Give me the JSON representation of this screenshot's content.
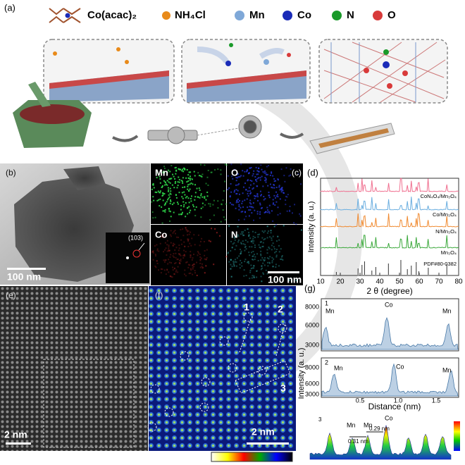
{
  "panel_a": {
    "label": "(a)",
    "legend": [
      "Co(acac)₂",
      "NH₄Cl",
      "Mn",
      "Co",
      "N",
      "O"
    ]
  },
  "panel_b": {
    "label": "(b)",
    "scale": "100 nm",
    "fft_index": "(103)"
  },
  "panel_c": {
    "label": "(c)",
    "maps": [
      "Mn",
      "O",
      "Co",
      "N"
    ],
    "scale": "100 nm"
  },
  "panel_d": {
    "label": "(d)",
    "ylabel": "Intensity (a. u.)",
    "xlabel": "2 θ (degree)",
    "xticks": [
      "10",
      "20",
      "30",
      "40",
      "50",
      "60",
      "70",
      "80"
    ],
    "traces": [
      "CoN₄O₄/Mn₃O₄",
      "Co/Mn₃O₄",
      "N/Mn₃O₄",
      "Mn₃O₄",
      "PDF#80-0382"
    ]
  },
  "panel_e": {
    "label": "(e)",
    "scale": "2 nm"
  },
  "panel_f": {
    "label": "(f)",
    "scale": "2 nm",
    "markers": [
      "1",
      "2",
      "3"
    ]
  },
  "panel_g": {
    "label": "(g)",
    "ylabel": "Intensity (a. u.)",
    "xlabel": "Distance (nm)",
    "yticks": [
      "8000",
      "6000",
      "3000"
    ],
    "xticks": [
      "0.5",
      "1.0",
      "1.5"
    ],
    "profile_1": {
      "number": "1",
      "peaks": [
        "Mn",
        "Co",
        "Mn"
      ]
    },
    "profile_2": {
      "number": "2",
      "peaks": [
        "Mn",
        "Co",
        "Mn"
      ]
    },
    "profile_3": {
      "number": "3",
      "peaks": [
        "Mn",
        "Mn",
        "Co"
      ],
      "distances": [
        "0.31 nm",
        "0.29 nm"
      ]
    }
  }
}
